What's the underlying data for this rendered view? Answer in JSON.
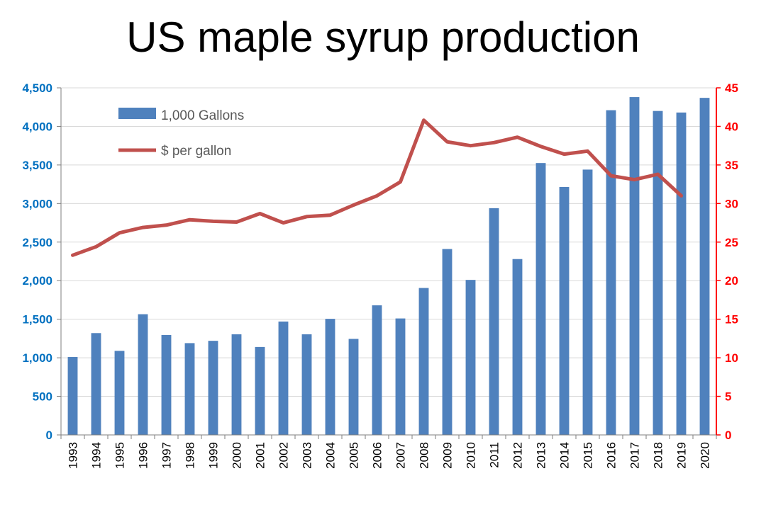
{
  "chart_data": {
    "type": "bar",
    "title": "US maple syrup production",
    "categories": [
      "1993",
      "1994",
      "1995",
      "1996",
      "1997",
      "1998",
      "1999",
      "2000",
      "2001",
      "2002",
      "2003",
      "2004",
      "2005",
      "2006",
      "2007",
      "2008",
      "2009",
      "2010",
      "2011",
      "2012",
      "2013",
      "2014",
      "2015",
      "2016",
      "2017",
      "2018",
      "2019",
      "2020"
    ],
    "series": [
      {
        "name": "1,000 Gallons",
        "type": "bar",
        "axis": "left",
        "color": "#4F81BD",
        "values": [
          1010,
          1320,
          1090,
          1565,
          1295,
          1190,
          1220,
          1305,
          1140,
          1470,
          1305,
          1505,
          1245,
          1680,
          1510,
          1905,
          2410,
          2010,
          2940,
          2280,
          3525,
          3215,
          3440,
          4210,
          4380,
          4200,
          4180,
          4370
        ]
      },
      {
        "name": "$ per gallon",
        "type": "line",
        "axis": "right",
        "color": "#C0504D",
        "values": [
          23.3,
          24.4,
          26.2,
          26.9,
          27.2,
          27.9,
          27.7,
          27.6,
          28.7,
          27.5,
          28.3,
          28.5,
          29.8,
          31.0,
          32.8,
          40.8,
          38.0,
          37.5,
          37.9,
          38.6,
          37.4,
          36.4,
          36.8,
          33.6,
          33.1,
          33.8,
          31.0,
          null
        ]
      }
    ],
    "y_left": {
      "min": 0,
      "max": 4500,
      "step": 500,
      "ticks": [
        "0",
        "500",
        "1,000",
        "1,500",
        "2,000",
        "2,500",
        "3,000",
        "3,500",
        "4,000",
        "4,500"
      ],
      "color": "#0070C0"
    },
    "y_right": {
      "min": 0,
      "max": 45,
      "step": 5,
      "ticks": [
        "0",
        "5",
        "10",
        "15",
        "20",
        "25",
        "30",
        "35",
        "40",
        "45"
      ],
      "color": "#FF0000"
    },
    "grid": true,
    "legend_position": "top-left"
  }
}
